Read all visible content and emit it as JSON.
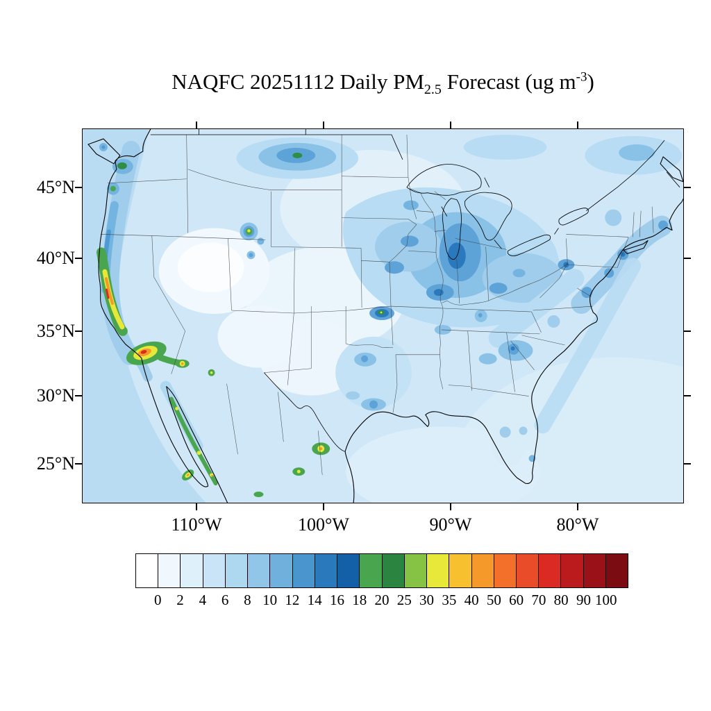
{
  "title": {
    "part1": "NAQFC 20251112 Daily PM",
    "subscript": "2.5",
    "part2": " Forecast (ug m",
    "superscript": "-3",
    "part3": ")"
  },
  "axes": {
    "lat_labels": [
      "45°N",
      "40°N",
      "35°N",
      "30°N",
      "25°N"
    ],
    "lon_labels": [
      "110°W",
      "100°W",
      "90°W",
      "80°W"
    ]
  },
  "colorbar": {
    "labels": [
      "0",
      "2",
      "4",
      "6",
      "8",
      "10",
      "12",
      "14",
      "16",
      "18",
      "20",
      "25",
      "30",
      "35",
      "40",
      "50",
      "60",
      "70",
      "80",
      "90",
      "100"
    ],
    "colors": [
      "#ffffff",
      "#f1f8fd",
      "#def0fa",
      "#c9e4f6",
      "#aed7f0",
      "#91c6e8",
      "#6fb0dd",
      "#4b95cf",
      "#2a79bd",
      "#1460a8",
      "#4aa64e",
      "#2b8440",
      "#86c243",
      "#e8e83b",
      "#f6c02f",
      "#f6992b",
      "#f2702a",
      "#e84c28",
      "#da2a23",
      "#bc1b1e",
      "#9a1218",
      "#7a0c12"
    ]
  },
  "chart_data": {
    "type": "heatmap",
    "title": "NAQFC 20251112 Daily PM2.5 Forecast (ug m-3)",
    "units": "ug m-3",
    "scale_breaks": [
      0,
      2,
      4,
      6,
      8,
      10,
      12,
      14,
      16,
      18,
      20,
      25,
      30,
      35,
      40,
      50,
      60,
      70,
      80,
      90,
      100
    ],
    "lat_ticks": [
      "45N",
      "40N",
      "35N",
      "30N",
      "25N"
    ],
    "lon_ticks": [
      "110W",
      "100W",
      "90W",
      "80W"
    ],
    "legend_position": "bottom"
  }
}
